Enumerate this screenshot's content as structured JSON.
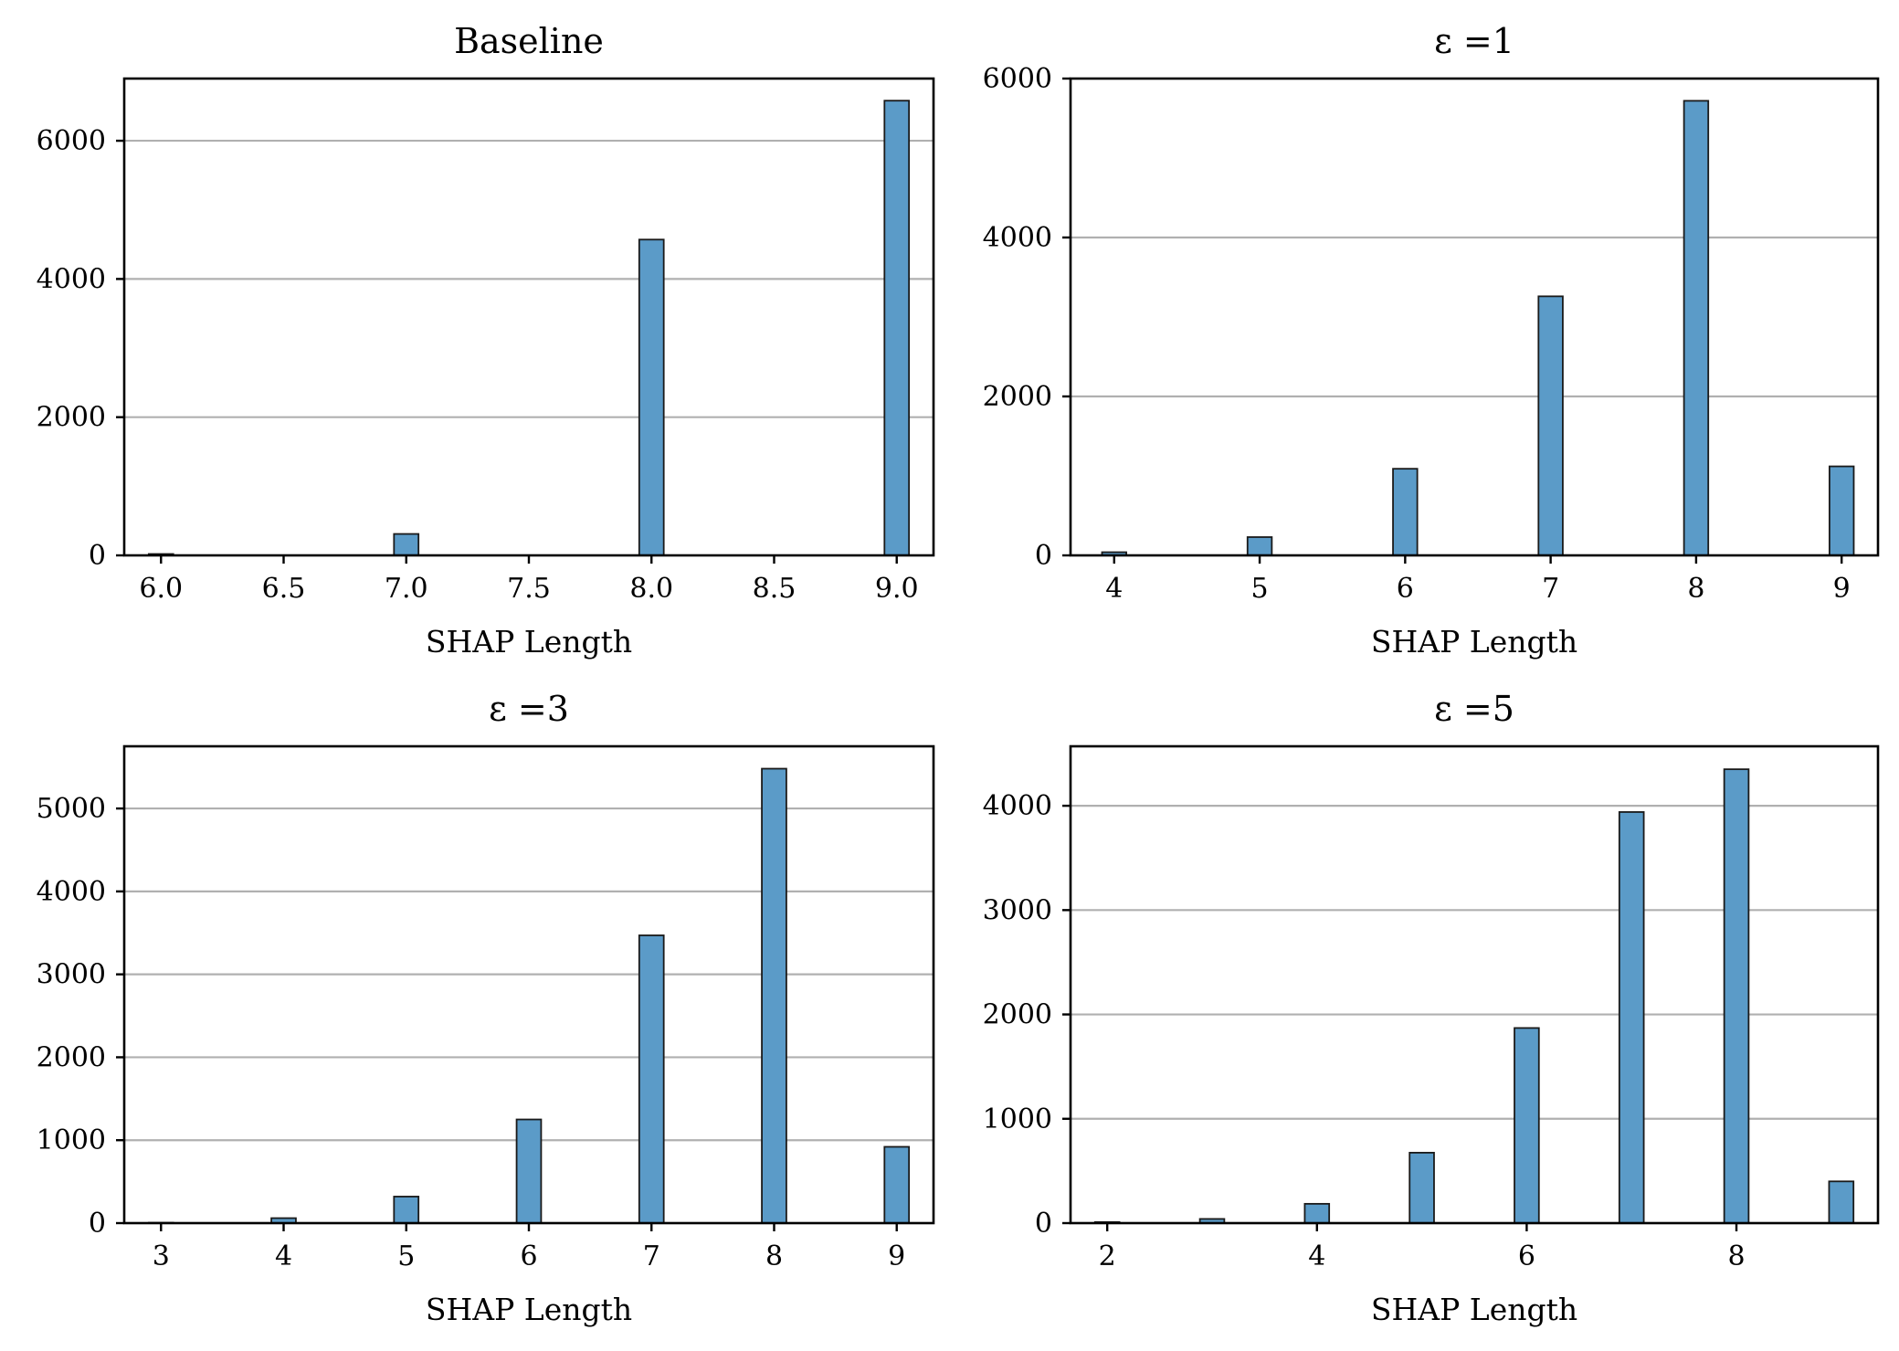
{
  "colors": {
    "bar": "#5b9bc8",
    "grid": "#b0b0b0"
  },
  "chart_data": [
    {
      "type": "bar",
      "title": "Baseline",
      "xlabel": "SHAP Length",
      "ylabel": "",
      "xlim": [
        5.85,
        9.15
      ],
      "ylim": [
        0,
        6900
      ],
      "xticks": [
        6.0,
        6.5,
        7.0,
        7.5,
        8.0,
        8.5,
        9.0
      ],
      "xtick_labels": [
        "6.0",
        "6.5",
        "7.0",
        "7.5",
        "8.0",
        "8.5",
        "9.0"
      ],
      "yticks": [
        0,
        2000,
        4000,
        6000
      ],
      "ytick_labels": [
        "0",
        "2000",
        "4000",
        "6000"
      ],
      "bar_width": 0.1,
      "x": [
        6,
        7,
        8,
        9
      ],
      "values": [
        20,
        310,
        4570,
        6580
      ],
      "grid": "y"
    },
    {
      "type": "bar",
      "title": "ε =1",
      "xlabel": "SHAP Length",
      "ylabel": "",
      "xlim": [
        3.7,
        9.25
      ],
      "ylim": [
        0,
        6000
      ],
      "xticks": [
        4,
        5,
        6,
        7,
        8,
        9
      ],
      "xtick_labels": [
        "4",
        "5",
        "6",
        "7",
        "8",
        "9"
      ],
      "yticks": [
        0,
        2000,
        4000,
        6000
      ],
      "ytick_labels": [
        "0",
        "2000",
        "4000",
        "6000"
      ],
      "bar_width": 0.167,
      "x": [
        4,
        5,
        6,
        7,
        8,
        9
      ],
      "values": [
        40,
        230,
        1090,
        3260,
        5720,
        1120
      ],
      "grid": "y"
    },
    {
      "type": "bar",
      "title": "ε =3",
      "xlabel": "SHAP Length",
      "ylabel": "",
      "xlim": [
        2.7,
        9.3
      ],
      "ylim": [
        0,
        5750
      ],
      "xticks": [
        3,
        4,
        5,
        6,
        7,
        8,
        9
      ],
      "xtick_labels": [
        "3",
        "4",
        "5",
        "6",
        "7",
        "8",
        "9"
      ],
      "yticks": [
        0,
        1000,
        2000,
        3000,
        4000,
        5000
      ],
      "ytick_labels": [
        "0",
        "1000",
        "2000",
        "3000",
        "4000",
        "5000"
      ],
      "bar_width": 0.2,
      "x": [
        3,
        4,
        5,
        6,
        7,
        8,
        9
      ],
      "values": [
        5,
        60,
        320,
        1250,
        3470,
        5480,
        920
      ],
      "grid": "y"
    },
    {
      "type": "bar",
      "title": "ε =5",
      "xlabel": "SHAP Length",
      "ylabel": "",
      "xlim": [
        1.65,
        9.35
      ],
      "ylim": [
        0,
        4570
      ],
      "xticks": [
        2,
        4,
        6,
        8
      ],
      "xtick_labels": [
        "2",
        "4",
        "6",
        "8"
      ],
      "yticks": [
        0,
        1000,
        2000,
        3000,
        4000
      ],
      "ytick_labels": [
        "0",
        "1000",
        "2000",
        "3000",
        "4000"
      ],
      "bar_width": 0.233,
      "x": [
        2,
        3,
        4,
        5,
        6,
        7,
        8,
        9
      ],
      "values": [
        10,
        40,
        185,
        675,
        1870,
        3940,
        4350,
        400
      ],
      "grid": "y"
    }
  ]
}
